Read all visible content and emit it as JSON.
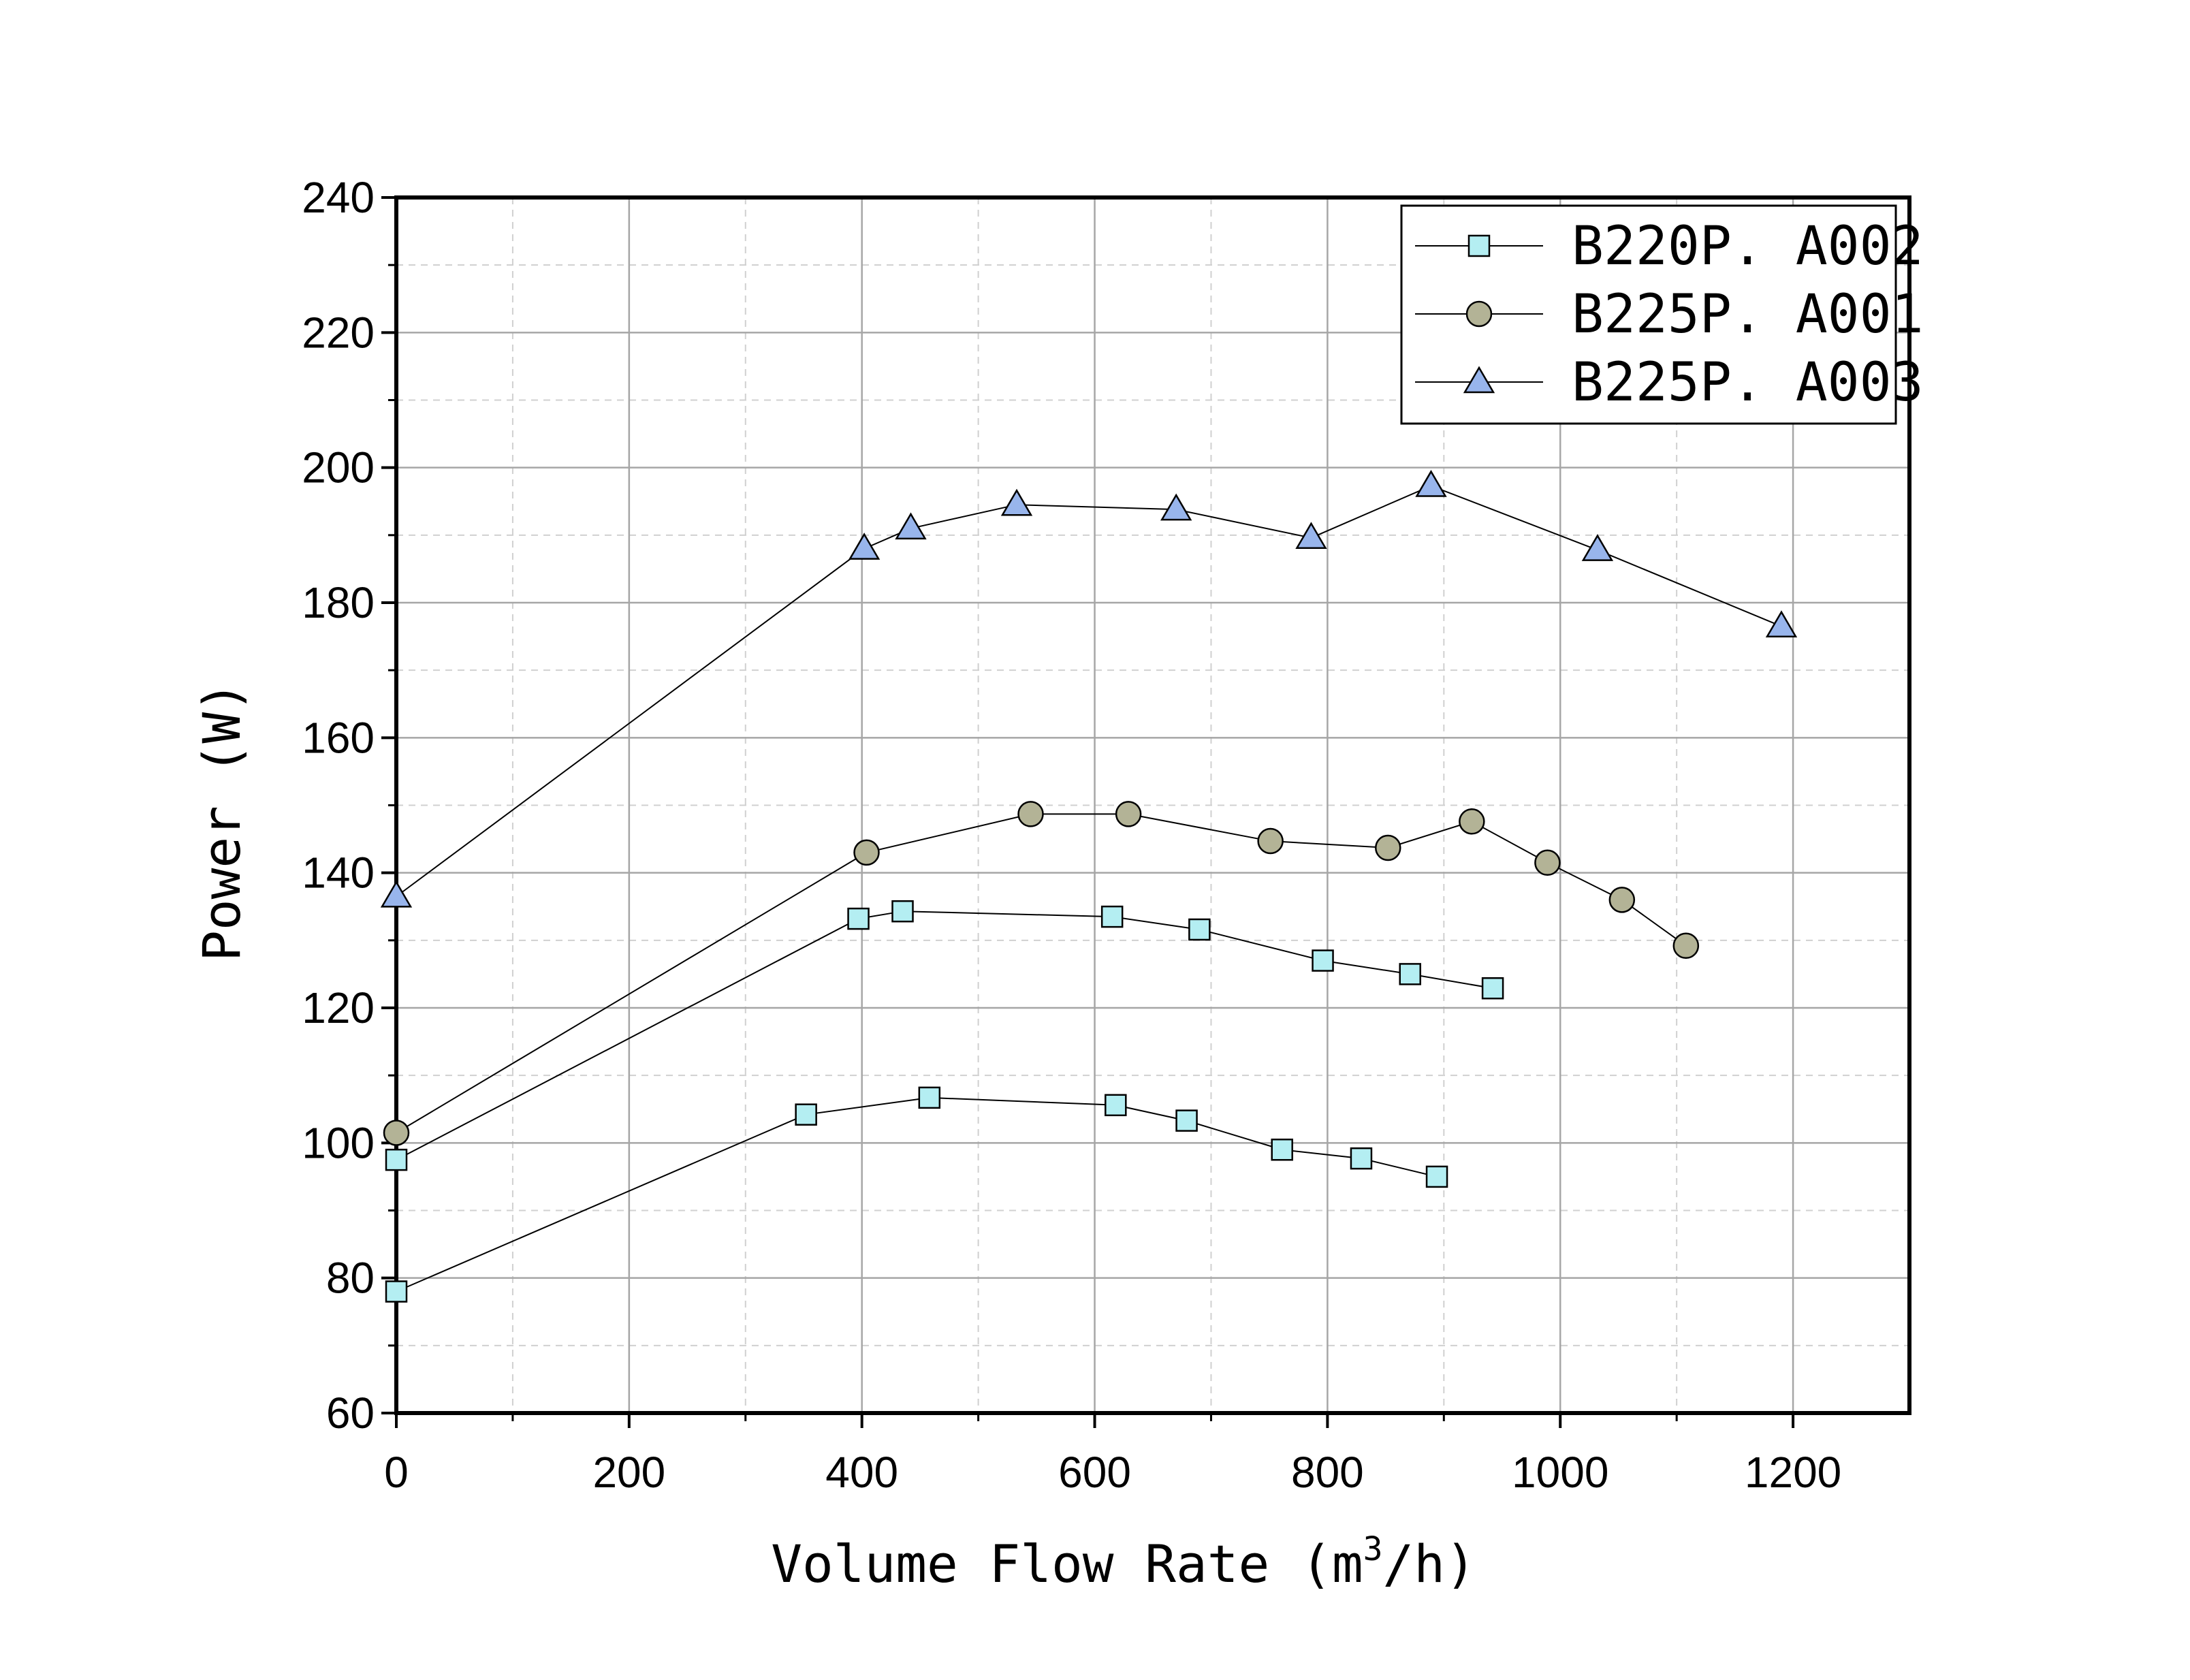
{
  "chart_data": {
    "type": "line",
    "xlabel_main": "Volume Flow Rate (m",
    "xlabel_sup": "3",
    "xlabel_tail": "/h)",
    "ylabel": "Power (W)",
    "xlim": [
      0,
      1300
    ],
    "ylim": [
      60,
      240
    ],
    "x_ticks": [
      "0",
      "200",
      "400",
      "600",
      "800",
      "1000",
      "1200"
    ],
    "y_ticks": [
      "60",
      "80",
      "100",
      "120",
      "140",
      "160",
      "180",
      "200",
      "220",
      "240"
    ],
    "grid": true,
    "legend_position": "top-right",
    "series": [
      {
        "name": "B220P. A002",
        "marker": "square",
        "color": "#b4eef2",
        "points": [
          [
            0,
            97.5
          ],
          [
            397,
            133.2
          ],
          [
            435,
            134.3
          ],
          [
            615,
            133.5
          ],
          [
            690,
            131.6
          ],
          [
            796,
            127.0
          ],
          [
            871,
            125.0
          ],
          [
            942,
            122.9
          ]
        ]
      },
      {
        "name": "",
        "marker": "square",
        "color": "#b4eef2",
        "points": [
          [
            0,
            78.0
          ],
          [
            352,
            104.2
          ],
          [
            458,
            106.7
          ],
          [
            618,
            105.6
          ],
          [
            679,
            103.3
          ],
          [
            761,
            99.0
          ],
          [
            829,
            97.7
          ],
          [
            894,
            95.0
          ]
        ]
      },
      {
        "name": "B225P. A001",
        "marker": "circle",
        "color": "#b3b396",
        "points": [
          [
            0,
            101.5
          ],
          [
            404,
            143.0
          ],
          [
            545,
            148.7
          ],
          [
            629,
            148.7
          ],
          [
            751,
            144.7
          ],
          [
            852,
            143.7
          ],
          [
            924,
            147.6
          ],
          [
            989,
            141.5
          ],
          [
            1053,
            136.0
          ],
          [
            1108,
            129.2
          ]
        ]
      },
      {
        "name": "B225P. A003",
        "marker": "triangle",
        "color": "#98b5ec",
        "points": [
          [
            0,
            136.5
          ],
          [
            402,
            188.0
          ],
          [
            442,
            191.0
          ],
          [
            533,
            194.5
          ],
          [
            670,
            193.8
          ],
          [
            786,
            189.6
          ],
          [
            889,
            197.3
          ],
          [
            1032,
            187.8
          ],
          [
            1190,
            176.5
          ]
        ]
      }
    ]
  }
}
